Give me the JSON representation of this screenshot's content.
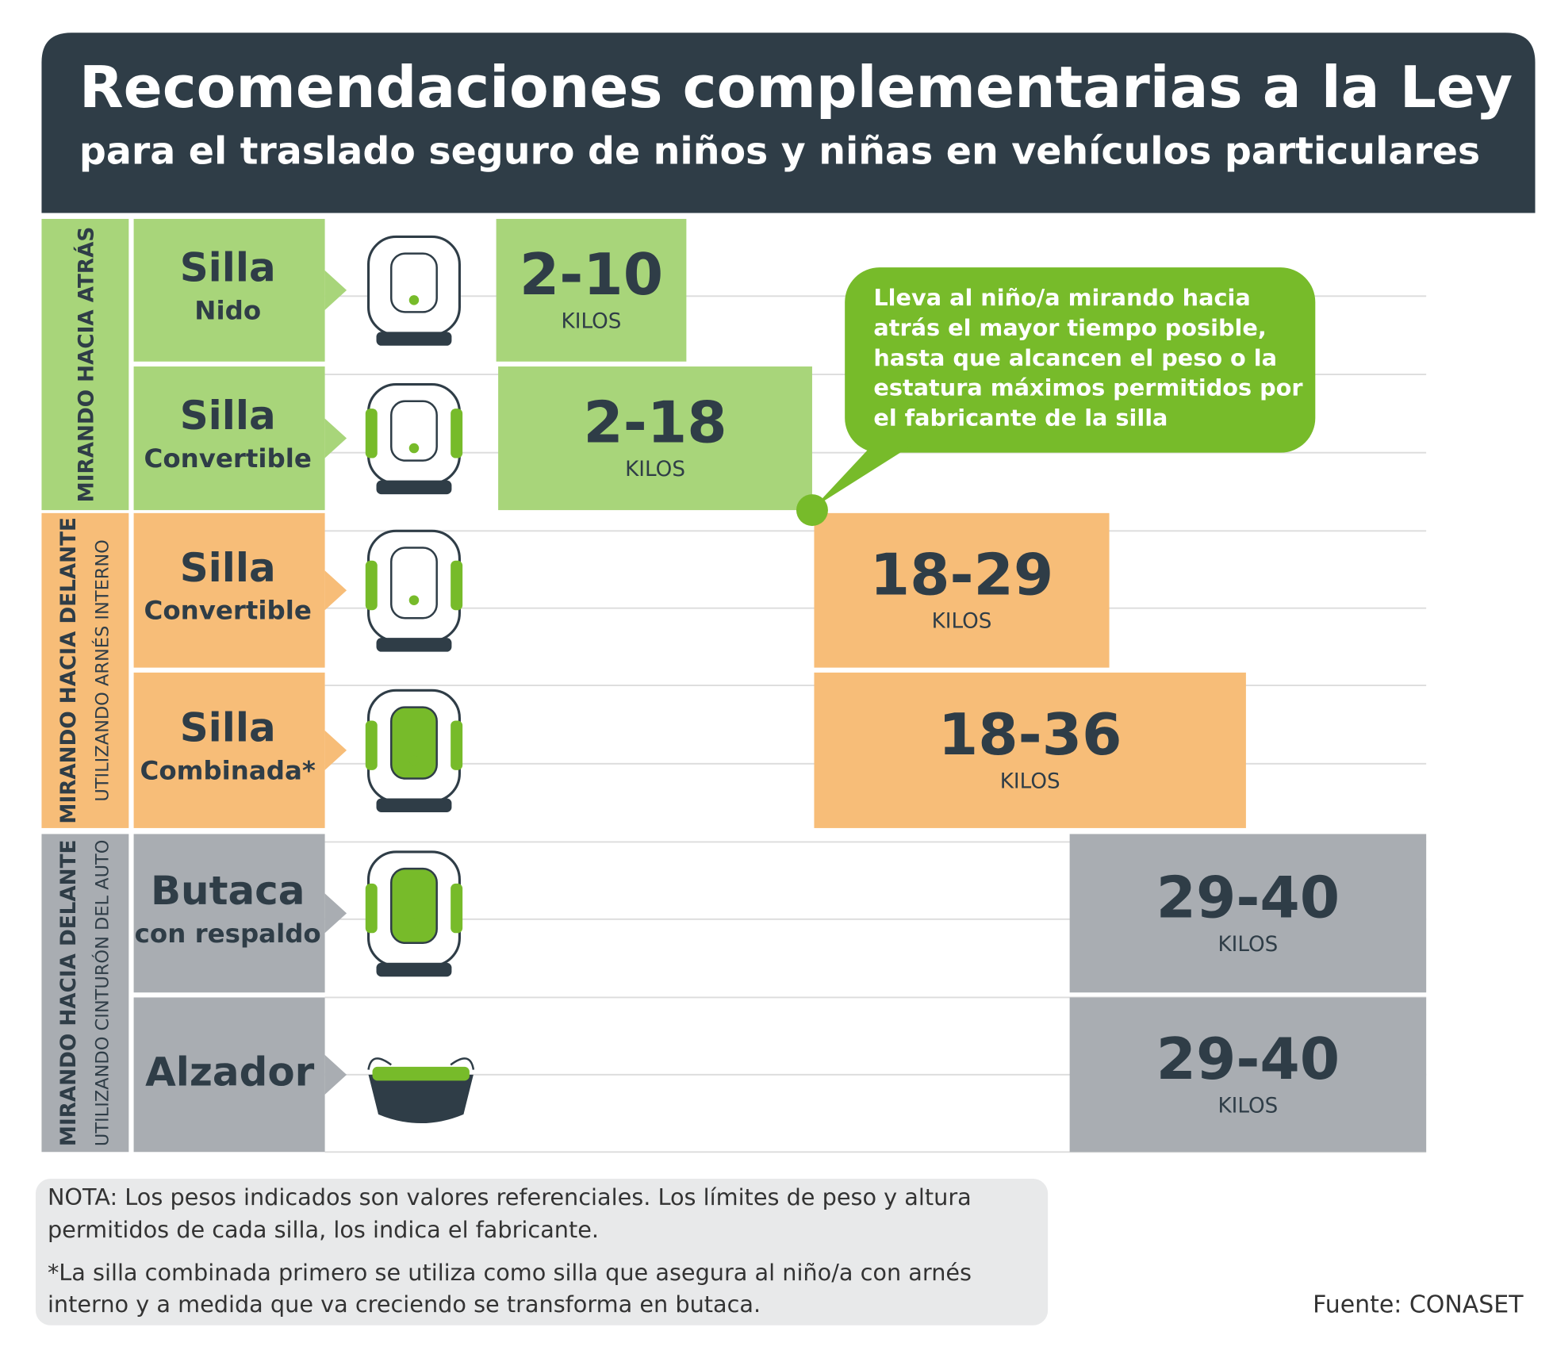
{
  "header": {
    "title": "Recomendaciones complementarias a la Ley",
    "subtitle": "para el traslado seguro de niños y niñas en vehículos particulares"
  },
  "groups": [
    {
      "label": "MIRANDO HACIA ATRÁS",
      "rows": [
        {
          "name": "Silla",
          "subname": "Nido",
          "range": "2-10",
          "unit": "KILOS"
        },
        {
          "name": "Silla",
          "subname": "Convertible",
          "range": "2-18",
          "unit": "KILOS"
        }
      ]
    },
    {
      "label": "MIRANDO HACIA DELANTE",
      "sublabel": "UTILIZANDO ARNÉS INTERNO",
      "rows": [
        {
          "name": "Silla",
          "subname": "Convertible",
          "range": "18-29",
          "unit": "KILOS"
        },
        {
          "name": "Silla",
          "subname": "Combinada*",
          "range": "18-36",
          "unit": "KILOS"
        }
      ]
    },
    {
      "label": "MIRANDO HACIA DELANTE",
      "sublabel": "UTILIZANDO CINTURÓN DEL AUTO",
      "rows": [
        {
          "name": "Butaca",
          "subname": "con respaldo",
          "range": "29-40",
          "unit": "KILOS"
        },
        {
          "name": "Alzador",
          "range": "29-40",
          "unit": "KILOS"
        }
      ]
    }
  ],
  "callout": {
    "lines": [
      "Lleva al niño/a mirando hacia",
      "atrás el mayor tiempo posible,",
      "hasta que alcancen el peso o la",
      "estatura máximos permitidos por",
      "el fabricante de la silla"
    ]
  },
  "note": {
    "lines": [
      "NOTA: Los pesos indicados son valores referenciales. Los límites de peso y altura",
      "permitidos de cada silla, los indica el fabricante.",
      "*La silla combinada primero se utiliza como silla que asegura al niño/a con arnés",
      "interno y a medida que va creciendo se transforma en butaca."
    ]
  },
  "source": "Fuente: CONASET"
}
